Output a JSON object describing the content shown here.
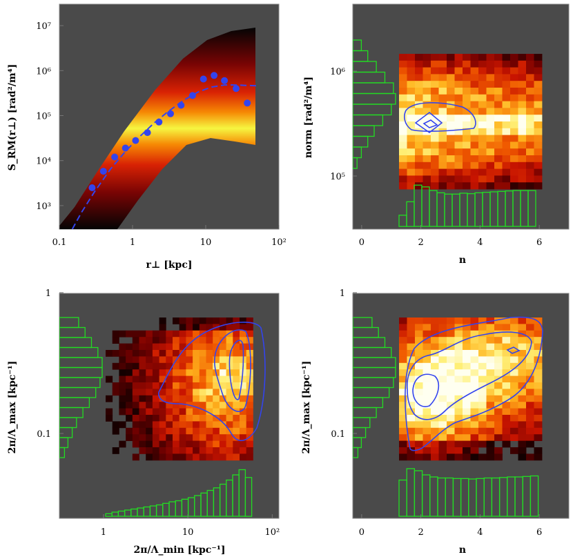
{
  "chart_data": [
    {
      "type": "line",
      "xscale": "log",
      "yscale": "log",
      "xlim": [
        0.1,
        100
      ],
      "ylim": [
        300,
        30000000
      ],
      "xlabel": "r⊥ [kpc]",
      "ylabel": "S_RM(r⊥) [rad²/m⁴]",
      "xtick_labels": [
        "0.1",
        "1",
        "10",
        "10²"
      ],
      "ytick_labels": [
        "10³",
        "10⁴",
        "10⁵",
        "10⁶",
        "10⁷"
      ],
      "series": [
        {
          "kind": "points",
          "color": "#3344ee",
          "x": [
            0.28,
            0.4,
            0.57,
            0.8,
            1.1,
            1.6,
            2.3,
            3.3,
            4.6,
            6.6,
            9.3,
            13,
            18,
            26,
            37
          ],
          "y": [
            2500,
            5800,
            12000,
            19000,
            28000,
            42000,
            72000,
            110000,
            170000,
            280000,
            650000,
            780000,
            600000,
            400000,
            190000
          ]
        },
        {
          "kind": "dashed-line",
          "color": "#3344ee",
          "x": [
            0.15,
            0.2,
            0.3,
            0.5,
            0.8,
            1.2,
            2,
            3,
            5,
            8,
            12,
            18,
            25,
            35,
            50
          ],
          "y": [
            300,
            700,
            2000,
            6500,
            16000,
            32000,
            70000,
            120000,
            220000,
            340000,
            430000,
            480000,
            480000,
            470000,
            460000
          ]
        },
        {
          "kind": "ensemble-band",
          "colors": [
            "#000000",
            "#8b0000",
            "#e02000",
            "#ff8c00",
            "#ffff00"
          ]
        }
      ]
    },
    {
      "type": "heatmap",
      "xlim": [
        -0.3,
        7.0
      ],
      "ylim_note": "log",
      "xlabel": "n",
      "ylabel": "norm [rad²/m⁴]",
      "xtick_labels": [
        "0",
        "2",
        "4",
        "6"
      ],
      "ytick_labels": [
        "10⁶",
        "10⁵"
      ],
      "hist_color": "#22dd22",
      "contour_color": "#3344ee",
      "x_hist": [
        0.25,
        0.55,
        0.92,
        0.88,
        0.8,
        0.75,
        0.72,
        0.72,
        0.74,
        0.73,
        0.75,
        0.76,
        0.77,
        0.78,
        0.79,
        0.8,
        0.8,
        0.8
      ],
      "y_hist": [
        0.2,
        0.35,
        0.55,
        0.75,
        0.95,
        1.0,
        0.9,
        0.7,
        0.5,
        0.35,
        0.2,
        0.1
      ]
    },
    {
      "type": "heatmap",
      "xscale": "log",
      "yscale": "log",
      "xlim": [
        0.3,
        120
      ],
      "ylim": [
        0.025,
        1
      ],
      "xlabel": "2π/Λ_min [kpc⁻¹]",
      "ylabel": "2π/Λ_max [kpc⁻¹]",
      "xtick_labels": [
        "1",
        "10",
        "10²"
      ],
      "ytick_labels": [
        "1",
        "0.1"
      ],
      "hist_color": "#22dd22",
      "contour_color": "#3344ee",
      "x_hist": [
        0.05,
        0.08,
        0.1,
        0.12,
        0.14,
        0.16,
        0.18,
        0.2,
        0.22,
        0.25,
        0.28,
        0.3,
        0.33,
        0.36,
        0.4,
        0.45,
        0.5,
        0.55,
        0.62,
        0.7,
        0.8,
        0.9,
        0.75
      ],
      "y_hist": [
        0.45,
        0.6,
        0.75,
        0.9,
        1.0,
        1.0,
        0.95,
        0.85,
        0.7,
        0.55,
        0.4,
        0.3,
        0.2,
        0.12
      ]
    },
    {
      "type": "heatmap",
      "xlim": [
        -0.3,
        7.0
      ],
      "yscale": "log",
      "ylim": [
        0.025,
        1
      ],
      "xlabel": "n",
      "ylabel": "2π/Λ_max [kpc⁻¹]",
      "xtick_labels": [
        "0",
        "2",
        "4",
        "6"
      ],
      "ytick_labels": [
        "1",
        "0.1"
      ],
      "hist_color": "#22dd22",
      "contour_color": "#3344ee",
      "x_hist": [
        0.7,
        0.92,
        0.88,
        0.8,
        0.76,
        0.74,
        0.74,
        0.73,
        0.73,
        0.72,
        0.73,
        0.74,
        0.74,
        0.75,
        0.76,
        0.76,
        0.77,
        0.78
      ],
      "y_hist": [
        0.45,
        0.6,
        0.75,
        0.9,
        1.0,
        1.0,
        0.95,
        0.85,
        0.7,
        0.55,
        0.4,
        0.3,
        0.2,
        0.12
      ]
    }
  ]
}
